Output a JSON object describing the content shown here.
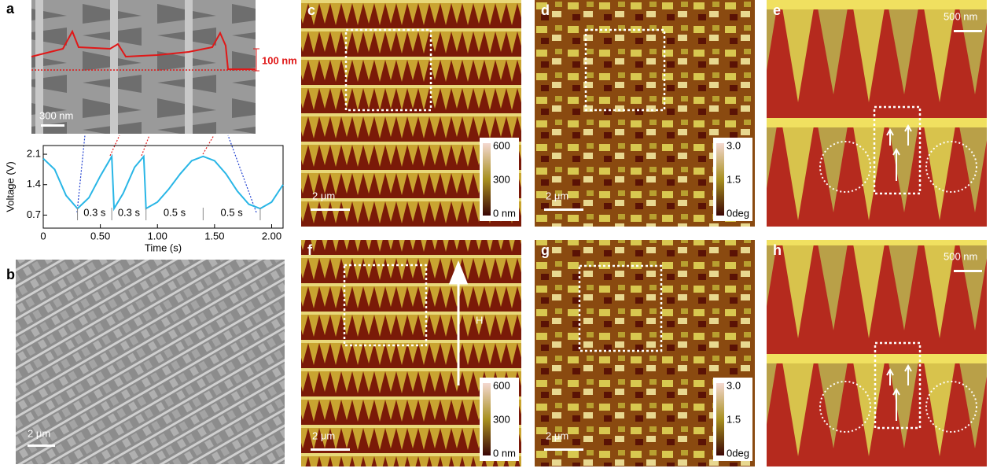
{
  "panels": {
    "a": {
      "label": "a",
      "image_scale": "300 nm",
      "height_scale": "100 nm"
    },
    "b": {
      "label": "b",
      "image_scale": "2 μm"
    },
    "c": {
      "label": "c",
      "image_scale": "2 μm",
      "colorbar": [
        "600",
        "300",
        "0 nm"
      ]
    },
    "d": {
      "label": "d",
      "image_scale": "2 μm",
      "colorbar": [
        "3.0",
        "1.5",
        "0deg"
      ]
    },
    "e": {
      "label": "e",
      "image_scale": "500 nm"
    },
    "f": {
      "label": "f",
      "image_scale": "2 μm",
      "colorbar": [
        "600",
        "300",
        "0 nm"
      ],
      "field": "H"
    },
    "g": {
      "label": "g",
      "image_scale": "2 μm",
      "colorbar": [
        "3.0",
        "1.5",
        "0deg"
      ]
    },
    "h": {
      "label": "h",
      "image_scale": "500 nm"
    }
  },
  "chart_data": {
    "type": "line",
    "x_label": "Time (s)",
    "y_label": "Voltage (V)",
    "x": [
      0,
      0.1,
      0.2,
      0.3,
      0.4,
      0.5,
      0.6,
      0.62,
      0.7,
      0.8,
      0.88,
      0.9,
      1.0,
      1.1,
      1.2,
      1.3,
      1.4,
      1.5,
      1.6,
      1.7,
      1.8,
      1.9,
      2.0,
      2.1
    ],
    "series": [
      {
        "color": "#29b6e6",
        "values": [
          2.0,
          1.75,
          1.15,
          0.85,
          1.1,
          1.6,
          2.05,
          0.85,
          1.2,
          1.8,
          2.05,
          0.85,
          1.0,
          1.3,
          1.65,
          1.95,
          2.05,
          1.95,
          1.65,
          1.25,
          0.95,
          0.85,
          1.0,
          1.4
        ]
      }
    ],
    "xlim": [
      0,
      2.1
    ],
    "ylim": [
      0.4,
      2.3
    ],
    "xticks": [
      0,
      {
        "value": 0.5,
        "label": "0.50"
      },
      {
        "value": 1.0,
        "label": "1.00"
      },
      {
        "value": 1.5,
        "label": "1.50"
      },
      {
        "value": 2.0,
        "label": "2.00"
      }
    ],
    "yticks": [
      0.7,
      1.4,
      2.1
    ],
    "annotations": [
      "0.3 s",
      "0.3 s",
      "0.5 s",
      "0.5 s"
    ]
  }
}
